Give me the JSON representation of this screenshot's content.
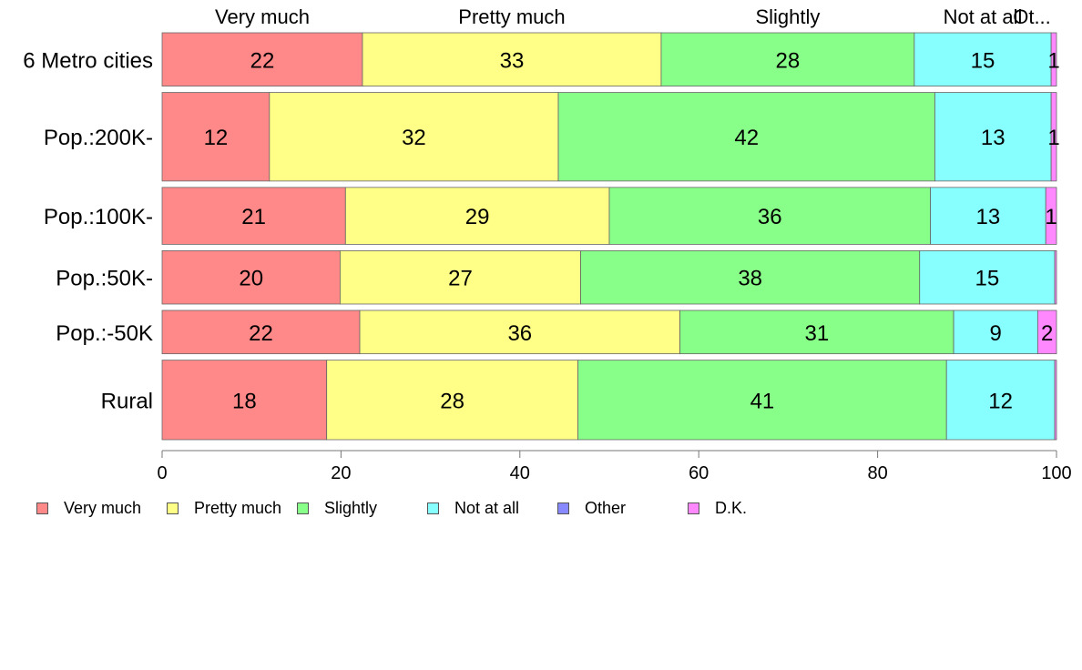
{
  "chart_data": {
    "type": "bar",
    "orientation": "horizontal",
    "stacked": true,
    "categories": [
      "6 Metro cities",
      "Pop.:200K-",
      "Pop.:100K-",
      "Pop.:50K-",
      "Pop.:-50K",
      "Rural"
    ],
    "series": [
      {
        "name": "Very much",
        "color": "#ff8888",
        "values": [
          22.4,
          12.0,
          20.5,
          19.9,
          22.1,
          18.4
        ]
      },
      {
        "name": "Pretty much",
        "color": "#ffff88",
        "values": [
          33.4,
          32.3,
          29.5,
          26.9,
          35.8,
          28.1
        ]
      },
      {
        "name": "Slightly",
        "color": "#88ff88",
        "values": [
          28.3,
          42.1,
          35.9,
          37.9,
          30.6,
          41.2
        ]
      },
      {
        "name": "Not at all",
        "color": "#88ffff",
        "values": [
          15.3,
          13.0,
          12.9,
          15.1,
          9.4,
          12.1
        ]
      },
      {
        "name": "Other",
        "color": "#8888ff",
        "values": [
          0.0,
          0.0,
          0.0,
          0.0,
          0.0,
          0.0
        ]
      },
      {
        "name": "D.K.",
        "color": "#ff88ff",
        "values": [
          0.6,
          0.6,
          1.2,
          0.2,
          2.1,
          0.2
        ]
      }
    ],
    "data_labels": [
      [
        "22",
        "33",
        "28",
        "15",
        "",
        "1"
      ],
      [
        "12",
        "32",
        "42",
        "13",
        "",
        "1"
      ],
      [
        "21",
        "29",
        "36",
        "13",
        "",
        "1"
      ],
      [
        "20",
        "27",
        "38",
        "15",
        "",
        ""
      ],
      [
        "22",
        "36",
        "31",
        "9",
        "",
        "2"
      ],
      [
        "18",
        "28",
        "41",
        "12",
        "",
        ""
      ]
    ],
    "column_headers": [
      "Very much",
      "Pretty much",
      "Slightly",
      "Not at all",
      "Ot..."
    ],
    "row_weights": [
      59,
      98,
      63,
      59,
      48,
      88
    ],
    "xlim": [
      0,
      100
    ],
    "xticks": [
      0,
      20,
      40,
      60,
      80,
      100
    ],
    "xlabel": "",
    "ylabel": "",
    "title": "",
    "grid": false,
    "legend_position": "bottom-left"
  }
}
